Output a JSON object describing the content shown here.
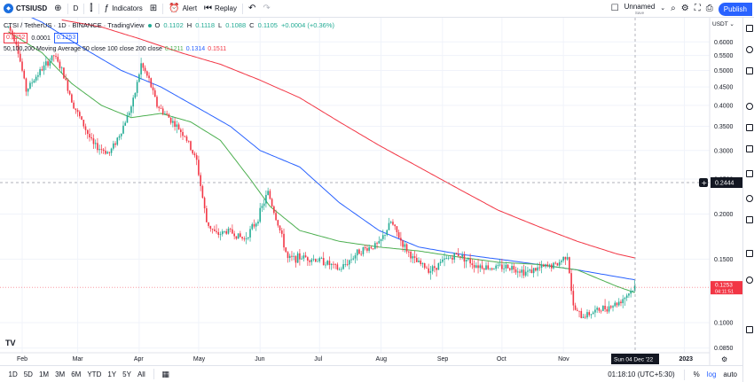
{
  "toolbar": {
    "symbol": "CTSIUSD",
    "interval": "D",
    "indicators_label": "Indicators",
    "alert_label": "Alert",
    "replay_label": "Replay",
    "layout_name": "Unnamed",
    "layout_status": "Save",
    "publish_label": "Publish"
  },
  "legend": {
    "title": "CTSI / TetherUS · 1D · BINANCE · TradingView",
    "open_label": "O",
    "open": "0.1102",
    "high_label": "H",
    "high": "0.1118",
    "low_label": "L",
    "low": "0.1088",
    "close_label": "C",
    "close": "0.1105",
    "change": "+0.0004 (+0.36%)",
    "bid": "0.1252",
    "spread": "0.0001",
    "ask": "0.1253",
    "ma_label": "50,100,200 Moving Average 50 close 100 close 200 close",
    "ma50": "0.1211",
    "ma100": "0.1314",
    "ma200": "0.1511"
  },
  "price_axis": {
    "currency": "USDT",
    "crosshair_price": "0.2444",
    "last_price": "0.1253",
    "countdown": "04:11:51"
  },
  "crosshair_date": "Sun 04 Dec '22",
  "bottombar": {
    "ranges": [
      "1D",
      "5D",
      "1M",
      "3M",
      "6M",
      "YTD",
      "1Y",
      "5Y",
      "All"
    ],
    "clock": "01:18:10 (UTC+5:30)",
    "percent_label": "%",
    "log_label": "log",
    "auto_label": "auto"
  },
  "colors": {
    "up": "#22ab94",
    "down": "#f23645",
    "ma50": "#4caf50",
    "ma100": "#2962ff",
    "ma200": "#f23645",
    "accent": "#2962ff"
  },
  "chart_data": {
    "type": "candlestick",
    "log_scale": true,
    "ylim": [
      0.0825,
      0.7
    ],
    "yticks": [
      "0.6000",
      "0.5500",
      "0.5000",
      "0.4500",
      "0.4000",
      "0.3500",
      "0.3000",
      "0.2500",
      "0.2000",
      "0.1500",
      "0.1000",
      "0.0850"
    ],
    "xticks": [
      {
        "label": "Feb",
        "day": 0
      },
      {
        "label": "Mar",
        "day": 28
      },
      {
        "label": "Apr",
        "day": 59
      },
      {
        "label": "May",
        "day": 89
      },
      {
        "label": "Jun",
        "day": 120
      },
      {
        "label": "Jul",
        "day": 150
      },
      {
        "label": "Aug",
        "day": 181
      },
      {
        "label": "Sep",
        "day": 212
      },
      {
        "label": "Oct",
        "day": 242
      },
      {
        "label": "Nov",
        "day": 273
      },
      {
        "label": "2023",
        "day": 334
      }
    ],
    "anchors": [
      {
        "day": -7,
        "price": 0.66
      },
      {
        "day": -3,
        "price": 0.6
      },
      {
        "day": 2,
        "price": 0.44
      },
      {
        "day": 8,
        "price": 0.49
      },
      {
        "day": 16,
        "price": 0.55
      },
      {
        "day": 20,
        "price": 0.5
      },
      {
        "day": 26,
        "price": 0.4
      },
      {
        "day": 36,
        "price": 0.31
      },
      {
        "day": 44,
        "price": 0.295
      },
      {
        "day": 50,
        "price": 0.34
      },
      {
        "day": 56,
        "price": 0.41
      },
      {
        "day": 60,
        "price": 0.52
      },
      {
        "day": 64,
        "price": 0.47
      },
      {
        "day": 68,
        "price": 0.4
      },
      {
        "day": 74,
        "price": 0.37
      },
      {
        "day": 82,
        "price": 0.33
      },
      {
        "day": 88,
        "price": 0.28
      },
      {
        "day": 93,
        "price": 0.19
      },
      {
        "day": 98,
        "price": 0.175
      },
      {
        "day": 104,
        "price": 0.18
      },
      {
        "day": 112,
        "price": 0.17
      },
      {
        "day": 118,
        "price": 0.19
      },
      {
        "day": 124,
        "price": 0.23
      },
      {
        "day": 130,
        "price": 0.18
      },
      {
        "day": 134,
        "price": 0.15
      },
      {
        "day": 142,
        "price": 0.152
      },
      {
        "day": 152,
        "price": 0.148
      },
      {
        "day": 160,
        "price": 0.14
      },
      {
        "day": 170,
        "price": 0.158
      },
      {
        "day": 180,
        "price": 0.165
      },
      {
        "day": 186,
        "price": 0.19
      },
      {
        "day": 192,
        "price": 0.165
      },
      {
        "day": 198,
        "price": 0.148
      },
      {
        "day": 206,
        "price": 0.14
      },
      {
        "day": 214,
        "price": 0.15
      },
      {
        "day": 220,
        "price": 0.155
      },
      {
        "day": 228,
        "price": 0.145
      },
      {
        "day": 236,
        "price": 0.142
      },
      {
        "day": 246,
        "price": 0.143
      },
      {
        "day": 254,
        "price": 0.138
      },
      {
        "day": 262,
        "price": 0.142
      },
      {
        "day": 270,
        "price": 0.145
      },
      {
        "day": 275,
        "price": 0.155
      },
      {
        "day": 278,
        "price": 0.11
      },
      {
        "day": 282,
        "price": 0.104
      },
      {
        "day": 288,
        "price": 0.107
      },
      {
        "day": 294,
        "price": 0.11
      },
      {
        "day": 300,
        "price": 0.113
      },
      {
        "day": 304,
        "price": 0.118
      },
      {
        "day": 309,
        "price": 0.1253
      }
    ],
    "ma_anchors": {
      "ma50": [
        {
          "day": -7,
          "price": 0.64
        },
        {
          "day": 10,
          "price": 0.56
        },
        {
          "day": 25,
          "price": 0.46
        },
        {
          "day": 40,
          "price": 0.4
        },
        {
          "day": 55,
          "price": 0.37
        },
        {
          "day": 70,
          "price": 0.38
        },
        {
          "day": 85,
          "price": 0.36
        },
        {
          "day": 100,
          "price": 0.32
        },
        {
          "day": 115,
          "price": 0.25
        },
        {
          "day": 125,
          "price": 0.21
        },
        {
          "day": 140,
          "price": 0.18
        },
        {
          "day": 160,
          "price": 0.168
        },
        {
          "day": 180,
          "price": 0.162
        },
        {
          "day": 200,
          "price": 0.158
        },
        {
          "day": 220,
          "price": 0.152
        },
        {
          "day": 240,
          "price": 0.147
        },
        {
          "day": 260,
          "price": 0.145
        },
        {
          "day": 280,
          "price": 0.14
        },
        {
          "day": 300,
          "price": 0.126
        },
        {
          "day": 309,
          "price": 0.1211
        }
      ],
      "ma100": [
        {
          "day": -7,
          "price": 0.75
        },
        {
          "day": 10,
          "price": 0.68
        },
        {
          "day": 30,
          "price": 0.58
        },
        {
          "day": 50,
          "price": 0.5
        },
        {
          "day": 70,
          "price": 0.45
        },
        {
          "day": 90,
          "price": 0.39
        },
        {
          "day": 105,
          "price": 0.35
        },
        {
          "day": 120,
          "price": 0.3
        },
        {
          "day": 140,
          "price": 0.27
        },
        {
          "day": 160,
          "price": 0.215
        },
        {
          "day": 180,
          "price": 0.18
        },
        {
          "day": 200,
          "price": 0.162
        },
        {
          "day": 220,
          "price": 0.155
        },
        {
          "day": 240,
          "price": 0.15
        },
        {
          "day": 260,
          "price": 0.145
        },
        {
          "day": 280,
          "price": 0.14
        },
        {
          "day": 300,
          "price": 0.134
        },
        {
          "day": 309,
          "price": 0.1314
        }
      ],
      "ma200": [
        {
          "day": 20,
          "price": 0.69
        },
        {
          "day": 40,
          "price": 0.66
        },
        {
          "day": 60,
          "price": 0.61
        },
        {
          "day": 80,
          "price": 0.56
        },
        {
          "day": 100,
          "price": 0.52
        },
        {
          "day": 120,
          "price": 0.47
        },
        {
          "day": 140,
          "price": 0.42
        },
        {
          "day": 160,
          "price": 0.36
        },
        {
          "day": 180,
          "price": 0.31
        },
        {
          "day": 200,
          "price": 0.27
        },
        {
          "day": 220,
          "price": 0.235
        },
        {
          "day": 240,
          "price": 0.205
        },
        {
          "day": 260,
          "price": 0.185
        },
        {
          "day": 280,
          "price": 0.168
        },
        {
          "day": 300,
          "price": 0.155
        },
        {
          "day": 309,
          "price": 0.1511
        }
      ]
    }
  }
}
